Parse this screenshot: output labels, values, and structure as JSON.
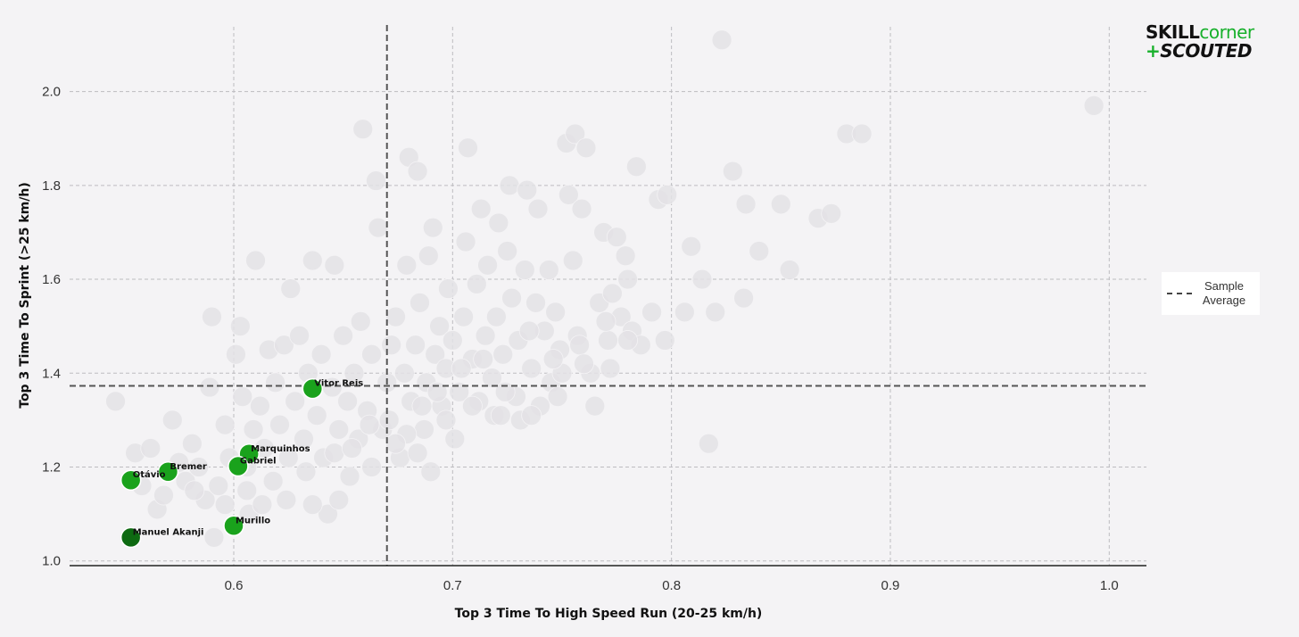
{
  "logo": {
    "part1": "SKILL",
    "part2": "corner",
    "plus": "+",
    "part3": "SCOUTED"
  },
  "legend": {
    "label": "Sample Average"
  },
  "chart_data": {
    "type": "scatter",
    "xlabel": "Top 3 Time To High Speed Run (20-25 km/h)",
    "ylabel": "Top 3 Time To Sprint (>25 km/h)",
    "xlim": [
      0.525,
      1.017
    ],
    "ylim": [
      0.99,
      2.138
    ],
    "xticks": [
      0.6,
      0.7,
      0.8,
      0.9,
      1.0
    ],
    "xtick_labels": [
      "0.6",
      "0.7",
      "0.8",
      "0.9",
      "1.0"
    ],
    "yticks": [
      1.0,
      1.2,
      1.4,
      1.6,
      1.8,
      2.0
    ],
    "ytick_labels": [
      "1.0",
      "1.2",
      "1.4",
      "1.6",
      "1.8",
      "2.0"
    ],
    "grid": true,
    "sample_average": {
      "x": 0.67,
      "y": 1.373
    },
    "background_points": [
      [
        0.546,
        1.34
      ],
      [
        0.555,
        1.23
      ],
      [
        0.558,
        1.16
      ],
      [
        0.562,
        1.24
      ],
      [
        0.565,
        1.11
      ],
      [
        0.568,
        1.14
      ],
      [
        0.572,
        1.3
      ],
      [
        0.575,
        1.21
      ],
      [
        0.578,
        1.17
      ],
      [
        0.581,
        1.25
      ],
      [
        0.584,
        1.2
      ],
      [
        0.587,
        1.13
      ],
      [
        0.589,
        1.37
      ],
      [
        0.59,
        1.52
      ],
      [
        0.591,
        1.05
      ],
      [
        0.593,
        1.16
      ],
      [
        0.596,
        1.29
      ],
      [
        0.598,
        1.22
      ],
      [
        0.601,
        1.44
      ],
      [
        0.603,
        1.5
      ],
      [
        0.604,
        1.35
      ],
      [
        0.606,
        1.2
      ],
      [
        0.607,
        1.1
      ],
      [
        0.609,
        1.28
      ],
      [
        0.61,
        1.64
      ],
      [
        0.612,
        1.33
      ],
      [
        0.614,
        1.24
      ],
      [
        0.616,
        1.45
      ],
      [
        0.618,
        1.17
      ],
      [
        0.619,
        1.38
      ],
      [
        0.621,
        1.29
      ],
      [
        0.623,
        1.46
      ],
      [
        0.625,
        1.22
      ],
      [
        0.626,
        1.58
      ],
      [
        0.628,
        1.34
      ],
      [
        0.63,
        1.48
      ],
      [
        0.632,
        1.26
      ],
      [
        0.634,
        1.4
      ],
      [
        0.636,
        1.64
      ],
      [
        0.638,
        1.31
      ],
      [
        0.64,
        1.44
      ],
      [
        0.641,
        1.22
      ],
      [
        0.643,
        1.1
      ],
      [
        0.645,
        1.37
      ],
      [
        0.646,
        1.63
      ],
      [
        0.648,
        1.28
      ],
      [
        0.65,
        1.48
      ],
      [
        0.652,
        1.34
      ],
      [
        0.653,
        1.18
      ],
      [
        0.655,
        1.4
      ],
      [
        0.657,
        1.26
      ],
      [
        0.658,
        1.51
      ],
      [
        0.659,
        1.92
      ],
      [
        0.661,
        1.32
      ],
      [
        0.663,
        1.44
      ],
      [
        0.665,
        1.81
      ],
      [
        0.666,
        1.71
      ],
      [
        0.668,
        1.28
      ],
      [
        0.67,
        1.38
      ],
      [
        0.672,
        1.46
      ],
      [
        0.674,
        1.52
      ],
      [
        0.676,
        1.22
      ],
      [
        0.678,
        1.4
      ],
      [
        0.679,
        1.63
      ],
      [
        0.68,
        1.86
      ],
      [
        0.681,
        1.34
      ],
      [
        0.683,
        1.46
      ],
      [
        0.684,
        1.83
      ],
      [
        0.685,
        1.55
      ],
      [
        0.687,
        1.28
      ],
      [
        0.688,
        1.38
      ],
      [
        0.689,
        1.65
      ],
      [
        0.69,
        1.19
      ],
      [
        0.691,
        1.71
      ],
      [
        0.692,
        1.44
      ],
      [
        0.694,
        1.5
      ],
      [
        0.695,
        1.33
      ],
      [
        0.697,
        1.41
      ],
      [
        0.698,
        1.58
      ],
      [
        0.7,
        1.47
      ],
      [
        0.701,
        1.26
      ],
      [
        0.703,
        1.36
      ],
      [
        0.705,
        1.52
      ],
      [
        0.706,
        1.68
      ],
      [
        0.707,
        1.88
      ],
      [
        0.709,
        1.43
      ],
      [
        0.711,
        1.59
      ],
      [
        0.712,
        1.34
      ],
      [
        0.713,
        1.75
      ],
      [
        0.715,
        1.48
      ],
      [
        0.716,
        1.63
      ],
      [
        0.718,
        1.39
      ],
      [
        0.719,
        1.31
      ],
      [
        0.72,
        1.52
      ],
      [
        0.721,
        1.72
      ],
      [
        0.723,
        1.44
      ],
      [
        0.725,
        1.66
      ],
      [
        0.726,
        1.8
      ],
      [
        0.727,
        1.56
      ],
      [
        0.729,
        1.35
      ],
      [
        0.73,
        1.47
      ],
      [
        0.731,
        1.3
      ],
      [
        0.733,
        1.62
      ],
      [
        0.734,
        1.79
      ],
      [
        0.736,
        1.41
      ],
      [
        0.738,
        1.55
      ],
      [
        0.739,
        1.75
      ],
      [
        0.74,
        1.33
      ],
      [
        0.742,
        1.49
      ],
      [
        0.744,
        1.62
      ],
      [
        0.745,
        1.38
      ],
      [
        0.747,
        1.53
      ],
      [
        0.749,
        1.45
      ],
      [
        0.75,
        1.4
      ],
      [
        0.752,
        1.89
      ],
      [
        0.753,
        1.78
      ],
      [
        0.755,
        1.64
      ],
      [
        0.756,
        1.91
      ],
      [
        0.757,
        1.48
      ],
      [
        0.759,
        1.75
      ],
      [
        0.761,
        1.88
      ],
      [
        0.763,
        1.4
      ],
      [
        0.765,
        1.33
      ],
      [
        0.767,
        1.55
      ],
      [
        0.769,
        1.7
      ],
      [
        0.771,
        1.47
      ],
      [
        0.773,
        1.57
      ],
      [
        0.775,
        1.69
      ],
      [
        0.777,
        1.52
      ],
      [
        0.779,
        1.65
      ],
      [
        0.78,
        1.6
      ],
      [
        0.782,
        1.49
      ],
      [
        0.784,
        1.84
      ],
      [
        0.786,
        1.46
      ],
      [
        0.791,
        1.53
      ],
      [
        0.794,
        1.77
      ],
      [
        0.797,
        1.47
      ],
      [
        0.798,
        1.78
      ],
      [
        0.806,
        1.53
      ],
      [
        0.809,
        1.67
      ],
      [
        0.814,
        1.6
      ],
      [
        0.817,
        1.25
      ],
      [
        0.82,
        1.53
      ],
      [
        0.823,
        2.11
      ],
      [
        0.828,
        1.83
      ],
      [
        0.833,
        1.56
      ],
      [
        0.834,
        1.76
      ],
      [
        0.84,
        1.66
      ],
      [
        0.85,
        1.76
      ],
      [
        0.854,
        1.62
      ],
      [
        0.867,
        1.73
      ],
      [
        0.873,
        1.74
      ],
      [
        0.88,
        1.91
      ],
      [
        0.887,
        1.91
      ],
      [
        0.993,
        1.97
      ],
      [
        0.582,
        1.15
      ],
      [
        0.596,
        1.12
      ],
      [
        0.606,
        1.15
      ],
      [
        0.613,
        1.12
      ],
      [
        0.624,
        1.13
      ],
      [
        0.633,
        1.19
      ],
      [
        0.646,
        1.23
      ],
      [
        0.654,
        1.24
      ],
      [
        0.662,
        1.29
      ],
      [
        0.671,
        1.3
      ],
      [
        0.679,
        1.27
      ],
      [
        0.686,
        1.33
      ],
      [
        0.693,
        1.36
      ],
      [
        0.704,
        1.41
      ],
      [
        0.714,
        1.43
      ],
      [
        0.724,
        1.36
      ],
      [
        0.735,
        1.49
      ],
      [
        0.746,
        1.43
      ],
      [
        0.758,
        1.46
      ],
      [
        0.77,
        1.51
      ],
      [
        0.78,
        1.47
      ],
      [
        0.636,
        1.12
      ],
      [
        0.648,
        1.13
      ],
      [
        0.663,
        1.2
      ],
      [
        0.674,
        1.25
      ],
      [
        0.684,
        1.23
      ],
      [
        0.697,
        1.3
      ],
      [
        0.709,
        1.33
      ],
      [
        0.722,
        1.31
      ],
      [
        0.736,
        1.31
      ],
      [
        0.748,
        1.35
      ],
      [
        0.76,
        1.42
      ],
      [
        0.772,
        1.41
      ]
    ],
    "highlighted_points": [
      {
        "name": "Vitor Reis",
        "x": 0.636,
        "y": 1.367,
        "color": "#1aa21c"
      },
      {
        "name": "Marquinhos",
        "x": 0.607,
        "y": 1.228,
        "color": "#1aa21c"
      },
      {
        "name": "Gabriel",
        "x": 0.602,
        "y": 1.202,
        "color": "#1aa21c"
      },
      {
        "name": "Bremer",
        "x": 0.57,
        "y": 1.19,
        "color": "#1aa21c"
      },
      {
        "name": "Otávio",
        "x": 0.553,
        "y": 1.172,
        "color": "#1aa21c"
      },
      {
        "name": "Murillo",
        "x": 0.6,
        "y": 1.075,
        "color": "#1aa21c"
      },
      {
        "name": "Manuel Akanji",
        "x": 0.553,
        "y": 1.05,
        "color": "#0e6a12"
      }
    ],
    "colors": {
      "background_point": "#e3e2e5",
      "highlight": "#1aa21c",
      "highlight_dark": "#0e6a12",
      "average_line": "#555555"
    }
  }
}
